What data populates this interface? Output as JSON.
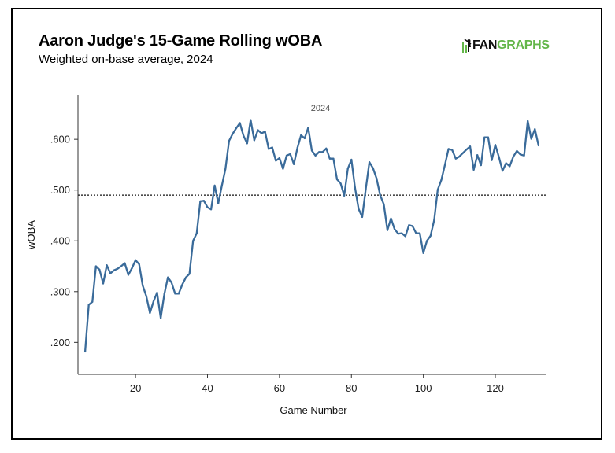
{
  "header": {
    "title": "Aaron Judge's 15-Game Rolling wOBA",
    "subtitle": "Weighted on-base average, 2024"
  },
  "logo": {
    "fan": "FAN",
    "graphs": "GRAPHS",
    "brand_color": "#63b649"
  },
  "colors": {
    "line": "#3a6b9a",
    "axis": "#333333",
    "reference": "#111111"
  },
  "chart_data": {
    "type": "line",
    "annotation": "2024",
    "xlabel": "Game Number",
    "ylabel": "wOBA",
    "xlim": [
      4,
      134
    ],
    "ylim": [
      0.137,
      0.687
    ],
    "xticks": [
      20,
      40,
      60,
      80,
      100,
      120
    ],
    "xtick_labels": [
      "20",
      "40",
      "60",
      "80",
      "100",
      "120"
    ],
    "yticks": [
      0.2,
      0.3,
      0.4,
      0.5,
      0.6
    ],
    "ytick_labels": [
      ".200",
      ".300",
      ".400",
      ".500",
      ".600"
    ],
    "reference_line": 0.49,
    "grid": false,
    "series": [
      {
        "name": "2024",
        "x": [
          6,
          7,
          8,
          9,
          10,
          11,
          12,
          13,
          14,
          15,
          16,
          17,
          18,
          19,
          20,
          21,
          22,
          23,
          24,
          25,
          26,
          27,
          28,
          29,
          30,
          31,
          32,
          33,
          34,
          35,
          36,
          37,
          38,
          39,
          40,
          41,
          42,
          43,
          44,
          45,
          46,
          47,
          48,
          49,
          50,
          51,
          52,
          53,
          54,
          55,
          56,
          57,
          58,
          59,
          60,
          61,
          62,
          63,
          64,
          65,
          66,
          67,
          68,
          69,
          70,
          71,
          72,
          73,
          74,
          75,
          76,
          77,
          78,
          79,
          80,
          81,
          82,
          83,
          84,
          85,
          86,
          87,
          88,
          89,
          90,
          91,
          92,
          93,
          94,
          95,
          96,
          97,
          98,
          99,
          100,
          101,
          102,
          103,
          104,
          105,
          106,
          107,
          108,
          109,
          110,
          111,
          112,
          113,
          114,
          115,
          116,
          117,
          118,
          119,
          120,
          121,
          122,
          123,
          124,
          125,
          126,
          127,
          128,
          129,
          130,
          131,
          132
        ],
        "y": [
          0.182,
          0.274,
          0.28,
          0.35,
          0.343,
          0.316,
          0.352,
          0.336,
          0.342,
          0.345,
          0.35,
          0.356,
          0.333,
          0.346,
          0.362,
          0.354,
          0.312,
          0.291,
          0.258,
          0.281,
          0.298,
          0.248,
          0.295,
          0.328,
          0.318,
          0.296,
          0.296,
          0.314,
          0.328,
          0.335,
          0.4,
          0.415,
          0.478,
          0.479,
          0.466,
          0.462,
          0.509,
          0.474,
          0.509,
          0.542,
          0.597,
          0.611,
          0.622,
          0.632,
          0.607,
          0.592,
          0.638,
          0.598,
          0.618,
          0.612,
          0.615,
          0.581,
          0.584,
          0.558,
          0.563,
          0.542,
          0.568,
          0.571,
          0.551,
          0.583,
          0.608,
          0.602,
          0.623,
          0.578,
          0.568,
          0.575,
          0.575,
          0.582,
          0.562,
          0.562,
          0.521,
          0.513,
          0.489,
          0.542,
          0.56,
          0.505,
          0.463,
          0.447,
          0.502,
          0.555,
          0.543,
          0.523,
          0.49,
          0.472,
          0.421,
          0.444,
          0.423,
          0.414,
          0.415,
          0.409,
          0.431,
          0.429,
          0.415,
          0.415,
          0.376,
          0.4,
          0.41,
          0.441,
          0.501,
          0.52,
          0.55,
          0.581,
          0.579,
          0.562,
          0.566,
          0.573,
          0.58,
          0.586,
          0.54,
          0.569,
          0.549,
          0.604,
          0.604,
          0.559,
          0.589,
          0.565,
          0.538,
          0.553,
          0.547,
          0.566,
          0.577,
          0.57,
          0.568,
          0.636,
          0.601,
          0.62,
          0.588
        ]
      }
    ]
  }
}
